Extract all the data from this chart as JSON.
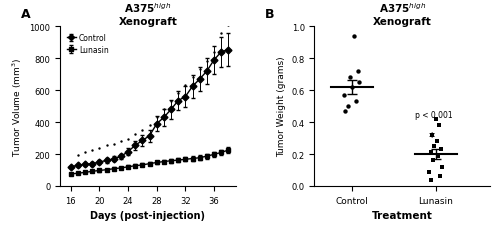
{
  "title_a": "A375$^{high}$\nXenograft",
  "panel_a_label": "A",
  "panel_b_label": "B",
  "days": [
    16,
    17,
    18,
    19,
    20,
    21,
    22,
    23,
    24,
    25,
    26,
    27,
    28,
    29,
    30,
    31,
    32,
    33,
    34,
    35,
    36,
    37,
    38
  ],
  "control_mean": [
    120,
    130,
    135,
    140,
    150,
    160,
    170,
    185,
    215,
    255,
    285,
    315,
    390,
    430,
    480,
    535,
    560,
    625,
    670,
    720,
    790,
    840,
    855
  ],
  "control_sem": [
    8,
    10,
    10,
    12,
    13,
    14,
    15,
    18,
    22,
    28,
    32,
    38,
    48,
    52,
    58,
    62,
    65,
    72,
    78,
    83,
    90,
    95,
    105
  ],
  "control_scatter_x": [
    17,
    18,
    19,
    20,
    21,
    22,
    23,
    24,
    25,
    26,
    27,
    28,
    29,
    30,
    31,
    32,
    33,
    34,
    35,
    36,
    37,
    38
  ],
  "control_scatter_y": [
    195,
    215,
    225,
    240,
    255,
    265,
    280,
    295,
    325,
    350,
    380,
    430,
    480,
    530,
    580,
    630,
    680,
    730,
    780,
    840,
    960,
    1010
  ],
  "lunasin_mean": [
    75,
    80,
    85,
    92,
    97,
    102,
    108,
    113,
    120,
    127,
    132,
    140,
    147,
    153,
    158,
    162,
    167,
    172,
    177,
    187,
    198,
    210,
    225
  ],
  "lunasin_sem": [
    5,
    5,
    6,
    6,
    7,
    7,
    8,
    8,
    9,
    9,
    10,
    11,
    11,
    12,
    12,
    13,
    13,
    14,
    14,
    15,
    16,
    18,
    20
  ],
  "xlabel_a": "Days (post-injection)",
  "ylabel_a": "Tumor Volume (mm$^3$)",
  "xticks_a": [
    16,
    20,
    24,
    28,
    32,
    36
  ],
  "ylim_a": [
    0,
    1000
  ],
  "yticks_a": [
    0,
    200,
    400,
    600,
    800,
    1000
  ],
  "title_b": "A375$^{high}$\nXenograft",
  "xlabel_b": "Treatment",
  "ylabel_b": "Tumor Weight (grams)",
  "ylim_b": [
    0.0,
    1.0
  ],
  "yticks_b": [
    0.0,
    0.2,
    0.4,
    0.6,
    0.8,
    1.0
  ],
  "control_weights": [
    0.47,
    0.5,
    0.53,
    0.57,
    0.62,
    0.65,
    0.68,
    0.72,
    0.94
  ],
  "control_mean_weight": 0.62,
  "control_sem_weight": 0.044,
  "lunasin_weights": [
    0.04,
    0.06,
    0.09,
    0.12,
    0.16,
    0.19,
    0.21,
    0.23,
    0.25,
    0.28,
    0.32,
    0.38,
    0.42
  ],
  "lunasin_mean_weight": 0.2,
  "lunasin_sem_weight": 0.03,
  "pvalue_text": "p < 0.001",
  "sig_star": "*",
  "background_color": "#ffffff"
}
